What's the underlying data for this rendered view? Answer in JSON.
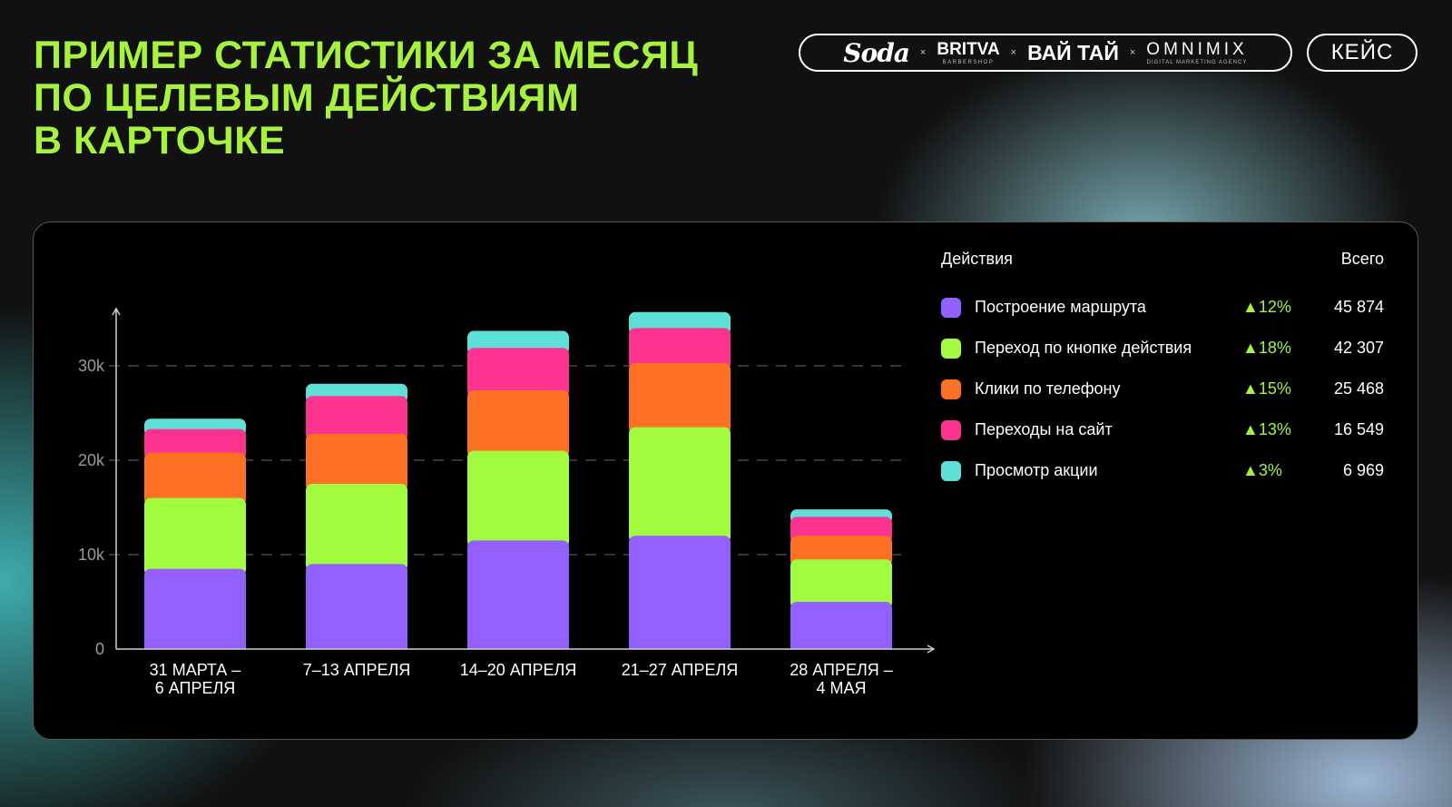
{
  "header": {
    "title_lines": [
      "ПРИМЕР СТАТИСТИКИ ЗА МЕСЯЦ",
      "ПО ЦЕЛЕВЫМ ДЕЙСТВИЯМ",
      "В КАРТОЧКЕ"
    ],
    "partners": {
      "soda": "Soda",
      "separator": "×",
      "britva": "BRITVA",
      "britva_sub": "BARBERSHOP",
      "vaitai": "ВАЙ ТАЙ",
      "omnimix": "OMNIMIX",
      "omnimix_sub": "DIGITAL MARKETING AGENCY"
    },
    "case_label": "КЕЙС"
  },
  "legend": {
    "actions_header": "Действия",
    "total_header": "Всего",
    "items": [
      {
        "label": "Построение маршрута",
        "change": "▲12%",
        "total": "45 874",
        "color": "#9160ff"
      },
      {
        "label": "Переход по кнопке действия",
        "change": "▲18%",
        "total": "42 307",
        "color": "#a2fb3f"
      },
      {
        "label": "Клики по телефону",
        "change": "▲15%",
        "total": "25 468",
        "color": "#fe7125"
      },
      {
        "label": "Переходы на сайт",
        "change": "▲13%",
        "total": "16 549",
        "color": "#fd348f"
      },
      {
        "label": "Просмотр акции",
        "change": "▲3%",
        "total": "6 969",
        "color": "#5ee0d8"
      }
    ]
  },
  "chart_data": {
    "type": "bar",
    "stacked": true,
    "categories": [
      [
        "31 МАРТА –",
        "6 АПРЕЛЯ"
      ],
      [
        "7–13 АПРЕЛЯ"
      ],
      [
        "14–20 АПРЕЛЯ"
      ],
      [
        "21–27 АПРЕЛЯ"
      ],
      [
        "28 АПРЕЛЯ –",
        "4 МАЯ"
      ]
    ],
    "series": [
      {
        "name": "Построение маршрута",
        "color": "#9160ff",
        "values": [
          8500,
          9000,
          11500,
          12000,
          5000
        ]
      },
      {
        "name": "Переход по кнопке действия",
        "color": "#a2fb3f",
        "values": [
          7500,
          8500,
          9500,
          11500,
          4500
        ]
      },
      {
        "name": "Клики по телефону",
        "color": "#fe7125",
        "values": [
          4800,
          5300,
          6400,
          6800,
          2500
        ]
      },
      {
        "name": "Переходы на сайт",
        "color": "#fd348f",
        "values": [
          2500,
          4000,
          4500,
          3700,
          2000
        ]
      },
      {
        "name": "Просмотр акции",
        "color": "#5ee0d8",
        "values": [
          1100,
          1300,
          1800,
          1700,
          800
        ]
      }
    ],
    "ylim": [
      0,
      36000
    ],
    "yticks": [
      0,
      10000,
      20000,
      30000
    ],
    "ytick_labels": [
      "0",
      "10k",
      "20k",
      "30k"
    ],
    "gridlines": [
      10000,
      20000,
      30000
    ],
    "grid": "dashed horizontal"
  }
}
